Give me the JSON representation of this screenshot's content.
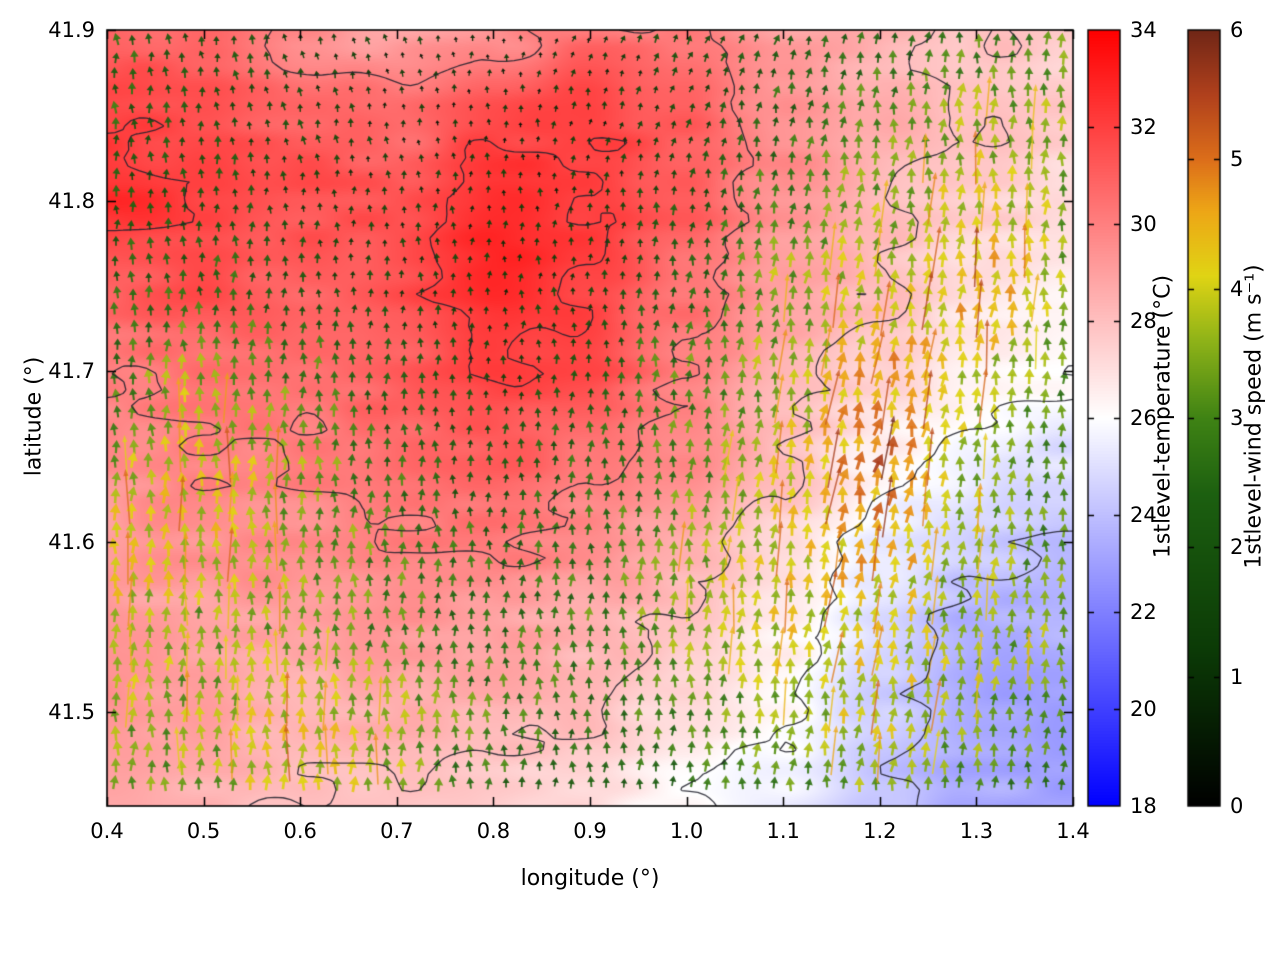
{
  "page": {
    "background": "#ffffff"
  },
  "chart_data": {
    "type": "heatmap",
    "title": "",
    "xlabel": "longitude (°)",
    "ylabel": "latitude (°)",
    "x_range": [
      0.4,
      1.4
    ],
    "y_range": [
      41.445,
      41.9
    ],
    "x_tick_values": [
      0.4,
      0.5,
      0.6,
      0.7,
      0.8,
      0.9,
      1.0,
      1.1,
      1.2,
      1.3,
      1.4
    ],
    "x_tick_labels": [
      "0.4",
      "0.5",
      "0.6",
      "0.7",
      "0.8",
      "0.9",
      "1.0",
      "1.1",
      "1.2",
      "1.3",
      "1.4"
    ],
    "y_tick_values": [
      41.5,
      41.6,
      41.7,
      41.8,
      41.9
    ],
    "y_tick_labels": [
      "41.5",
      "41.6",
      "41.7",
      "41.8",
      "41.9"
    ],
    "grid_lon": [
      0.4,
      0.5,
      0.6,
      0.7,
      0.8,
      0.9,
      1.0,
      1.1,
      1.2,
      1.3,
      1.4
    ],
    "grid_lat": [
      41.9,
      41.85,
      41.8,
      41.75,
      41.7,
      41.65,
      41.6,
      41.55,
      41.5,
      41.45
    ],
    "temperature": {
      "label": "1stlevel-temperature (°C)",
      "min": 18,
      "max": 34,
      "tick_values": [
        18,
        20,
        22,
        24,
        26,
        28,
        30,
        32,
        34
      ],
      "tick_labels": [
        "18",
        "20",
        "22",
        "24",
        "26",
        "28",
        "30",
        "32",
        "34"
      ],
      "values": [
        [
          31.0,
          30.5,
          29.5,
          29.0,
          29.5,
          30.5,
          30.0,
          29.0,
          28.5,
          28.0,
          27.5
        ],
        [
          32.0,
          31.5,
          31.0,
          30.5,
          31.5,
          32.0,
          31.0,
          29.5,
          28.5,
          28.0,
          27.5
        ],
        [
          32.5,
          32.0,
          31.5,
          31.5,
          32.8,
          32.3,
          31.0,
          29.5,
          28.3,
          27.5,
          27.0
        ],
        [
          31.0,
          31.5,
          31.0,
          31.5,
          32.8,
          32.0,
          30.5,
          29.0,
          28.0,
          27.0,
          26.5
        ],
        [
          30.0,
          30.5,
          30.5,
          31.0,
          32.0,
          31.5,
          30.0,
          28.5,
          27.3,
          26.5,
          26.0
        ],
        [
          29.5,
          30.0,
          30.0,
          30.5,
          31.0,
          30.5,
          29.5,
          28.0,
          26.5,
          25.5,
          25.0
        ],
        [
          29.0,
          29.5,
          29.5,
          30.0,
          30.2,
          29.5,
          28.5,
          27.3,
          25.5,
          24.5,
          24.0
        ],
        [
          29.0,
          29.0,
          29.0,
          29.2,
          29.0,
          28.5,
          28.0,
          26.5,
          25.0,
          23.5,
          23.5
        ],
        [
          29.5,
          29.0,
          28.5,
          28.5,
          28.5,
          28.0,
          27.0,
          26.0,
          24.5,
          23.0,
          23.0
        ],
        [
          29.0,
          28.5,
          28.0,
          28.0,
          27.5,
          27.0,
          26.0,
          25.5,
          24.0,
          23.5,
          23.0
        ]
      ]
    },
    "wind": {
      "label": "1stlevel-wind speed (m s⁻¹)",
      "min": 0,
      "max": 6,
      "tick_values": [
        0,
        1,
        2,
        3,
        4,
        5,
        6
      ],
      "tick_labels": [
        "0",
        "1",
        "2",
        "3",
        "4",
        "5",
        "6"
      ],
      "speed": [
        [
          2.5,
          2.0,
          1.5,
          1.0,
          0.8,
          1.0,
          1.5,
          2.0,
          2.5,
          3.0,
          3.0
        ],
        [
          2.5,
          2.0,
          1.5,
          1.0,
          0.8,
          1.0,
          1.5,
          2.5,
          3.0,
          3.5,
          3.5
        ],
        [
          2.0,
          2.0,
          1.5,
          1.2,
          1.0,
          1.2,
          2.0,
          3.0,
          3.5,
          4.0,
          3.5
        ],
        [
          2.5,
          2.5,
          2.0,
          1.5,
          1.2,
          1.5,
          2.5,
          3.5,
          4.0,
          4.5,
          3.5
        ],
        [
          3.0,
          3.5,
          3.0,
          2.0,
          1.5,
          2.0,
          3.0,
          3.5,
          4.5,
          4.0,
          3.0
        ],
        [
          3.5,
          4.0,
          3.5,
          2.5,
          2.0,
          2.5,
          3.0,
          4.0,
          5.0,
          3.5,
          3.0
        ],
        [
          4.0,
          4.0,
          3.5,
          3.0,
          2.5,
          2.5,
          3.5,
          4.0,
          4.5,
          3.5,
          3.0
        ],
        [
          4.0,
          3.5,
          3.5,
          3.0,
          2.5,
          3.0,
          3.5,
          4.0,
          4.0,
          3.5,
          3.5
        ],
        [
          3.5,
          3.5,
          4.0,
          3.5,
          3.0,
          2.5,
          3.0,
          3.5,
          4.0,
          3.5,
          3.0
        ],
        [
          3.0,
          3.5,
          4.0,
          3.5,
          2.5,
          2.0,
          2.5,
          3.0,
          3.5,
          3.0,
          3.0
        ]
      ],
      "direction_deg": [
        [
          95,
          100,
          105,
          110,
          90,
          70,
          65,
          75,
          85,
          90,
          90
        ],
        [
          90,
          95,
          100,
          95,
          90,
          80,
          75,
          80,
          85,
          88,
          90
        ],
        [
          90,
          90,
          92,
          90,
          88,
          85,
          82,
          82,
          84,
          86,
          88
        ],
        [
          90,
          90,
          90,
          90,
          88,
          86,
          84,
          82,
          82,
          84,
          86
        ],
        [
          90,
          90,
          90,
          90,
          90,
          88,
          85,
          82,
          80,
          84,
          88
        ],
        [
          90,
          90,
          90,
          90,
          90,
          88,
          85,
          80,
          78,
          84,
          88
        ],
        [
          90,
          90,
          90,
          90,
          90,
          88,
          86,
          82,
          78,
          84,
          90
        ],
        [
          90,
          90,
          90,
          90,
          90,
          90,
          88,
          84,
          80,
          85,
          90
        ],
        [
          90,
          90,
          90,
          90,
          90,
          90,
          88,
          85,
          82,
          86,
          90
        ],
        [
          88,
          90,
          90,
          90,
          90,
          90,
          88,
          86,
          84,
          88,
          90
        ]
      ]
    },
    "contour_levels": [
      24,
      26,
      28,
      30,
      32
    ],
    "colormap_temperature": [
      [
        18,
        "#0000ff"
      ],
      [
        26,
        "#ffffff"
      ],
      [
        34,
        "#ff0000"
      ]
    ],
    "colormap_wind": [
      [
        0,
        "#000000"
      ],
      [
        1.2,
        "#0b3a06"
      ],
      [
        2.4,
        "#1c5f10"
      ],
      [
        3.0,
        "#3f8314"
      ],
      [
        3.6,
        "#8fb318"
      ],
      [
        4.1,
        "#e0d414"
      ],
      [
        4.6,
        "#eda616"
      ],
      [
        5.0,
        "#dc6e1a"
      ],
      [
        5.5,
        "#b0401c"
      ],
      [
        6,
        "#6f2616"
      ]
    ]
  }
}
